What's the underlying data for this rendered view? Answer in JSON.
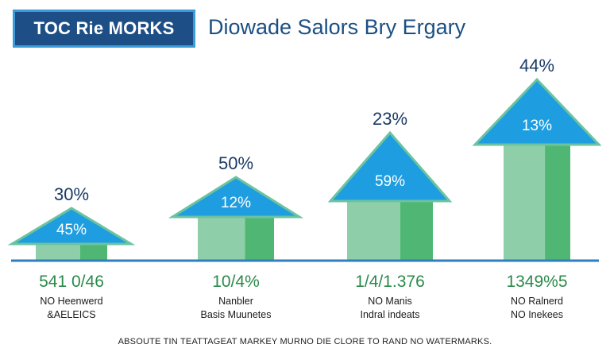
{
  "header": {
    "badge": "TOC Rie MORKS",
    "title": "Diowade Salors Bry Ergary"
  },
  "footnote": "ABSOUTE TIN TEATTAGEAT MARKEY MURNO DIE CLORE TO RAND NO WATERMARKS.",
  "colors": {
    "arrow_head": "#1e9ee0",
    "arrow_head_outline": "#6cc3a0",
    "bar_light": "#8ecfaa",
    "bar_dark": "#4fb773",
    "baseline": "#2e7fc1",
    "top_label": "#1b3b66",
    "value_label": "#2a8a4a"
  },
  "chart_data": {
    "type": "bar",
    "title": "",
    "categories": [
      "NO Heenwerd &AELEICS",
      "Nanbler Basis Muunetes",
      "NO Manis Indral indeats",
      "NO Ralnerd NO Inekees"
    ],
    "series": [
      {
        "values": [
          1,
          2,
          3,
          4
        ]
      }
    ],
    "top_labels": [
      "30%",
      "50%",
      "23%",
      "44%"
    ],
    "arrow_labels": [
      "45%",
      "12%",
      "59%",
      "13%"
    ],
    "value_labels": [
      "541 0/46",
      "10/4%",
      "1/4/1.376",
      "1349%5"
    ],
    "category_lines": [
      [
        "NO Heenwerd",
        "&AELEICS"
      ],
      [
        "Nanbler",
        "Basis Muunetes"
      ],
      [
        "NO Manis",
        "Indral indeats"
      ],
      [
        "NO Ralnerd",
        "NO Inekees"
      ]
    ],
    "grid": false,
    "legend": "none"
  }
}
